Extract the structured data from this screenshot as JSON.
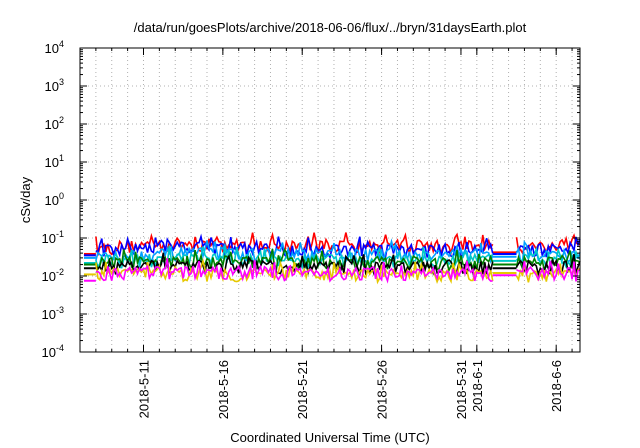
{
  "chart_data": {
    "type": "line",
    "title": "/data/run/goesPlots/archive/2018-06-06/flux/../bryn/31daysEarth.plot",
    "xlabel": "Coordinated Universal Time (UTC)",
    "ylabel": "cSv/day",
    "yscale": "log",
    "ylim": [
      0.0001,
      10000
    ],
    "y_ticks": [
      {
        "value": 0.0001,
        "base": "10",
        "exp": "-4"
      },
      {
        "value": 0.001,
        "base": "10",
        "exp": "-3"
      },
      {
        "value": 0.01,
        "base": "10",
        "exp": "-2"
      },
      {
        "value": 0.1,
        "base": "10",
        "exp": "-1"
      },
      {
        "value": 1,
        "base": "10",
        "exp": "0"
      },
      {
        "value": 10,
        "base": "10",
        "exp": "1"
      },
      {
        "value": 100,
        "base": "10",
        "exp": "2"
      },
      {
        "value": 1000,
        "base": "10",
        "exp": "3"
      },
      {
        "value": 10000,
        "base": "10",
        "exp": "4"
      }
    ],
    "xlim": [
      "2018-05-07T00:00",
      "2018-06-07T12:00"
    ],
    "x_ticks": [
      {
        "date": "2018-05-11",
        "label": "2018-5-11"
      },
      {
        "date": "2018-05-16",
        "label": "2018-5-16"
      },
      {
        "date": "2018-05-21",
        "label": "2018-5-21"
      },
      {
        "date": "2018-05-26",
        "label": "2018-5-26"
      },
      {
        "date": "2018-05-31",
        "label": "2018-5-31"
      },
      {
        "date": "2018-06-01",
        "label": "2018-6-1"
      },
      {
        "date": "2018-06-06",
        "label": "2018-6-6"
      }
    ],
    "grid": true,
    "data_gap": [
      "2018-06-02T00:00",
      "2018-06-03T12:00"
    ],
    "series": [
      {
        "color": "#ff0000",
        "start_level": 0.038,
        "gap_level": 0.042,
        "points": [
          [
            "2018-05-08",
            0.06
          ],
          [
            "2018-05-10",
            0.07
          ],
          [
            "2018-05-13",
            0.08
          ],
          [
            "2018-05-16",
            0.075
          ],
          [
            "2018-05-19",
            0.07
          ],
          [
            "2018-05-22",
            0.07
          ],
          [
            "2018-05-25",
            0.072
          ],
          [
            "2018-05-28",
            0.07
          ],
          [
            "2018-05-31",
            0.068
          ],
          [
            "2018-06-02",
            0.07
          ],
          [
            "2018-06-04",
            0.07
          ],
          [
            "2018-06-07",
            0.068
          ]
        ]
      },
      {
        "color": "#0000ff",
        "start_level": 0.035,
        "gap_level": 0.038,
        "points": [
          [
            "2018-05-08",
            0.05
          ],
          [
            "2018-05-10",
            0.055
          ],
          [
            "2018-05-13",
            0.065
          ],
          [
            "2018-05-16",
            0.06
          ],
          [
            "2018-05-19",
            0.058
          ],
          [
            "2018-05-22",
            0.055
          ],
          [
            "2018-05-25",
            0.058
          ],
          [
            "2018-05-28",
            0.055
          ],
          [
            "2018-05-31",
            0.055
          ],
          [
            "2018-06-02",
            0.056
          ],
          [
            "2018-06-04",
            0.057
          ],
          [
            "2018-06-07",
            0.055
          ]
        ]
      },
      {
        "color": "#00a0ff",
        "start_level": 0.03,
        "gap_level": 0.032,
        "points": [
          [
            "2018-05-08",
            0.04
          ],
          [
            "2018-05-10",
            0.04
          ],
          [
            "2018-05-13",
            0.045
          ],
          [
            "2018-05-16",
            0.043
          ],
          [
            "2018-05-19",
            0.042
          ],
          [
            "2018-05-22",
            0.04
          ],
          [
            "2018-05-25",
            0.042
          ],
          [
            "2018-05-28",
            0.04
          ],
          [
            "2018-05-31",
            0.04
          ],
          [
            "2018-06-02",
            0.04
          ],
          [
            "2018-06-04",
            0.041
          ],
          [
            "2018-06-07",
            0.04
          ]
        ]
      },
      {
        "color": "#00c8c8",
        "start_level": 0.022,
        "gap_level": 0.025,
        "points": [
          [
            "2018-05-08",
            0.028
          ],
          [
            "2018-05-10",
            0.03
          ],
          [
            "2018-05-13",
            0.032
          ],
          [
            "2018-05-16",
            0.031
          ],
          [
            "2018-05-19",
            0.03
          ],
          [
            "2018-05-22",
            0.029
          ],
          [
            "2018-05-25",
            0.03
          ],
          [
            "2018-05-28",
            0.029
          ],
          [
            "2018-05-31",
            0.029
          ],
          [
            "2018-06-02",
            0.03
          ],
          [
            "2018-06-04",
            0.03
          ],
          [
            "2018-06-07",
            0.029
          ]
        ]
      },
      {
        "color": "#008000",
        "start_level": 0.02,
        "gap_level": 0.02,
        "points": [
          [
            "2018-05-08",
            0.025
          ],
          [
            "2018-05-10",
            0.026
          ],
          [
            "2018-05-13",
            0.027
          ],
          [
            "2018-05-16",
            0.027
          ],
          [
            "2018-05-19",
            0.026
          ],
          [
            "2018-05-22",
            0.025
          ],
          [
            "2018-05-25",
            0.026
          ],
          [
            "2018-05-28",
            0.025
          ],
          [
            "2018-05-31",
            0.025
          ],
          [
            "2018-06-02",
            0.025
          ],
          [
            "2018-06-04",
            0.026
          ],
          [
            "2018-06-07",
            0.025
          ]
        ]
      },
      {
        "color": "#000000",
        "start_level": 0.016,
        "gap_level": 0.016,
        "points": [
          [
            "2018-05-08",
            0.02
          ],
          [
            "2018-05-10",
            0.02
          ],
          [
            "2018-05-13",
            0.021
          ],
          [
            "2018-05-16",
            0.021
          ],
          [
            "2018-05-19",
            0.02
          ],
          [
            "2018-05-22",
            0.02
          ],
          [
            "2018-05-25",
            0.02
          ],
          [
            "2018-05-28",
            0.02
          ],
          [
            "2018-05-31",
            0.02
          ],
          [
            "2018-06-02",
            0.02
          ],
          [
            "2018-06-04",
            0.02
          ],
          [
            "2018-06-07",
            0.02
          ]
        ]
      },
      {
        "color": "#e6c800",
        "start_level": 0.011,
        "gap_level": 0.012,
        "points": [
          [
            "2018-05-08",
            0.012
          ],
          [
            "2018-05-10",
            0.013
          ],
          [
            "2018-05-13",
            0.013
          ],
          [
            "2018-05-16",
            0.013
          ],
          [
            "2018-05-19",
            0.012
          ],
          [
            "2018-05-22",
            0.012
          ],
          [
            "2018-05-25",
            0.012
          ],
          [
            "2018-05-28",
            0.012
          ],
          [
            "2018-05-31",
            0.012
          ],
          [
            "2018-06-02",
            0.012
          ],
          [
            "2018-06-04",
            0.012
          ],
          [
            "2018-06-07",
            0.012
          ]
        ]
      },
      {
        "color": "#ff00ff",
        "start_level": 0.0075,
        "gap_level": 0.0105,
        "points": [
          [
            "2018-05-08",
            0.012
          ],
          [
            "2018-05-10",
            0.014
          ],
          [
            "2018-05-13",
            0.015
          ],
          [
            "2018-05-16",
            0.015
          ],
          [
            "2018-05-19",
            0.014
          ],
          [
            "2018-05-22",
            0.013
          ],
          [
            "2018-05-25",
            0.014
          ],
          [
            "2018-05-28",
            0.013
          ],
          [
            "2018-05-31",
            0.013
          ],
          [
            "2018-06-02",
            0.013
          ],
          [
            "2018-06-04",
            0.014
          ],
          [
            "2018-06-07",
            0.013
          ]
        ]
      }
    ]
  }
}
